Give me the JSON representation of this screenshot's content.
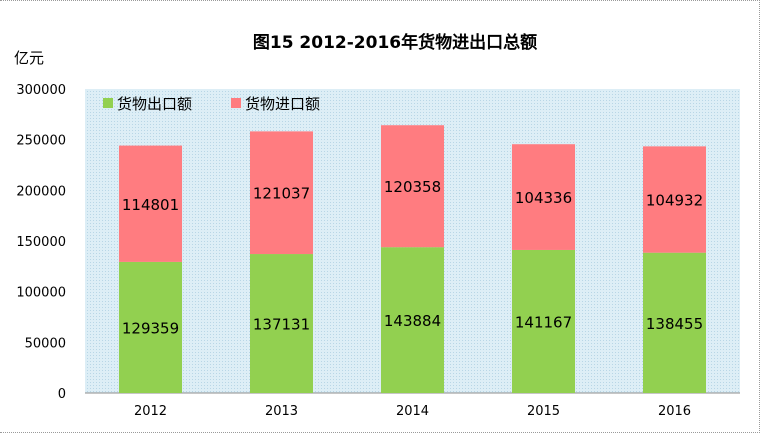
{
  "chart_data": {
    "type": "bar",
    "stacked": true,
    "title": "图15    2012-2016年货物进出口总额",
    "ylabel": "亿元",
    "xlabel": "",
    "categories": [
      "2012",
      "2013",
      "2014",
      "2015",
      "2016"
    ],
    "series": [
      {
        "name": "货物出口额",
        "color": "#92d050",
        "values": [
          129359,
          137131,
          143884,
          141167,
          138455
        ]
      },
      {
        "name": "货物进口额",
        "color": "#ff7c80",
        "values": [
          114801,
          121037,
          120358,
          104336,
          104932
        ]
      }
    ],
    "ylim": [
      0,
      300000
    ],
    "yticks": [
      "0",
      "50000",
      "100000",
      "150000",
      "200000",
      "250000",
      "300000"
    ],
    "legend_position": "top-left",
    "grid": false,
    "plot_background": "#ddeef6",
    "data_labels": true
  }
}
